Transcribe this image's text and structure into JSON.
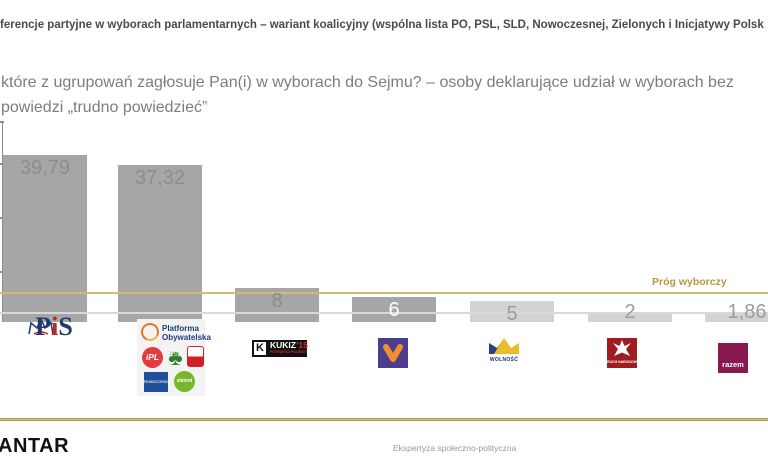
{
  "header": {
    "title": "ferencje partyjne w wyborach parlamentarnych – wariant koalicyjny (wspólna lista PO, PSL, SLD, Nowoczesnej, Zielonych i Inicjatywy Polsk",
    "subtitle_line1": "które z ugrupowań zagłosuje Pan(i) w wyborach do Sejmu? – osoby deklarujące udział w wyborach bez",
    "subtitle_line2": "powiedzi „trudno powiedzieć”"
  },
  "chart_data": {
    "type": "bar",
    "title": "Preferencje partyjne w wyborach parlamentarnych – wariant koalicyjny",
    "categories": [
      "PiS",
      "Koalicja: PO, PSL, SLD, Nowoczesna, Zieloni, inicjatywa Polska",
      "Kukiz'15",
      "Wiosna",
      "Wolność",
      "Ruch Narodowy",
      "Razem"
    ],
    "keys": [
      "pis",
      "koalicja",
      "kukiz15",
      "wiosna",
      "wolnosc",
      "ruch-narodowy",
      "razem"
    ],
    "values": [
      39.79,
      37.32,
      8,
      6,
      5,
      2,
      1.86
    ],
    "value_labels": [
      "39,79",
      "37,32",
      "8",
      "6",
      "5",
      "2",
      "1,86"
    ],
    "bar_colors": [
      "#a6a6a6",
      "#a6a6a6",
      "#a6a6a6",
      "#a6a6a6",
      "#d3d3d3",
      "#d3d3d3",
      "#d3d3d3"
    ],
    "label_colors": [
      "#8d8d8d",
      "#8d8d8d",
      "#8d8d8d",
      "#ffffff",
      "#9c9c9c",
      "#9c9c9c",
      "#9c9c9c"
    ],
    "threshold_label": "Próg wyborczy",
    "threshold_color": "#b6983c",
    "xlabel": "",
    "ylabel": "",
    "grid": "partial (zero line + threshold line)",
    "legend": "none (party logos under bars)"
  },
  "logos": {
    "pis": {
      "letters": [
        "P",
        "i",
        "S"
      ]
    },
    "coalition": {
      "po_line1": "Platforma",
      "po_line2": "Obywatelska",
      "ipl": "iPL",
      "psl": "PSL",
      "psl_glyph": "♣",
      "nowoczesna": "Nowoczesna",
      "zieloni": "zieloni"
    },
    "kukiz": {
      "k": "K",
      "name": "KUKIZ",
      "suffix": "’15",
      "tagline": "POTRAFISZ POLSKO!"
    },
    "wolnosc": {
      "name": "WOLNOŚĆ"
    },
    "ruch": {
      "name": "RUCH NARODOWY"
    },
    "razem": {
      "name": "razem"
    }
  },
  "footer": {
    "brand": "ANTAR",
    "note": "Ekspertyza społeczno-polityczna"
  }
}
